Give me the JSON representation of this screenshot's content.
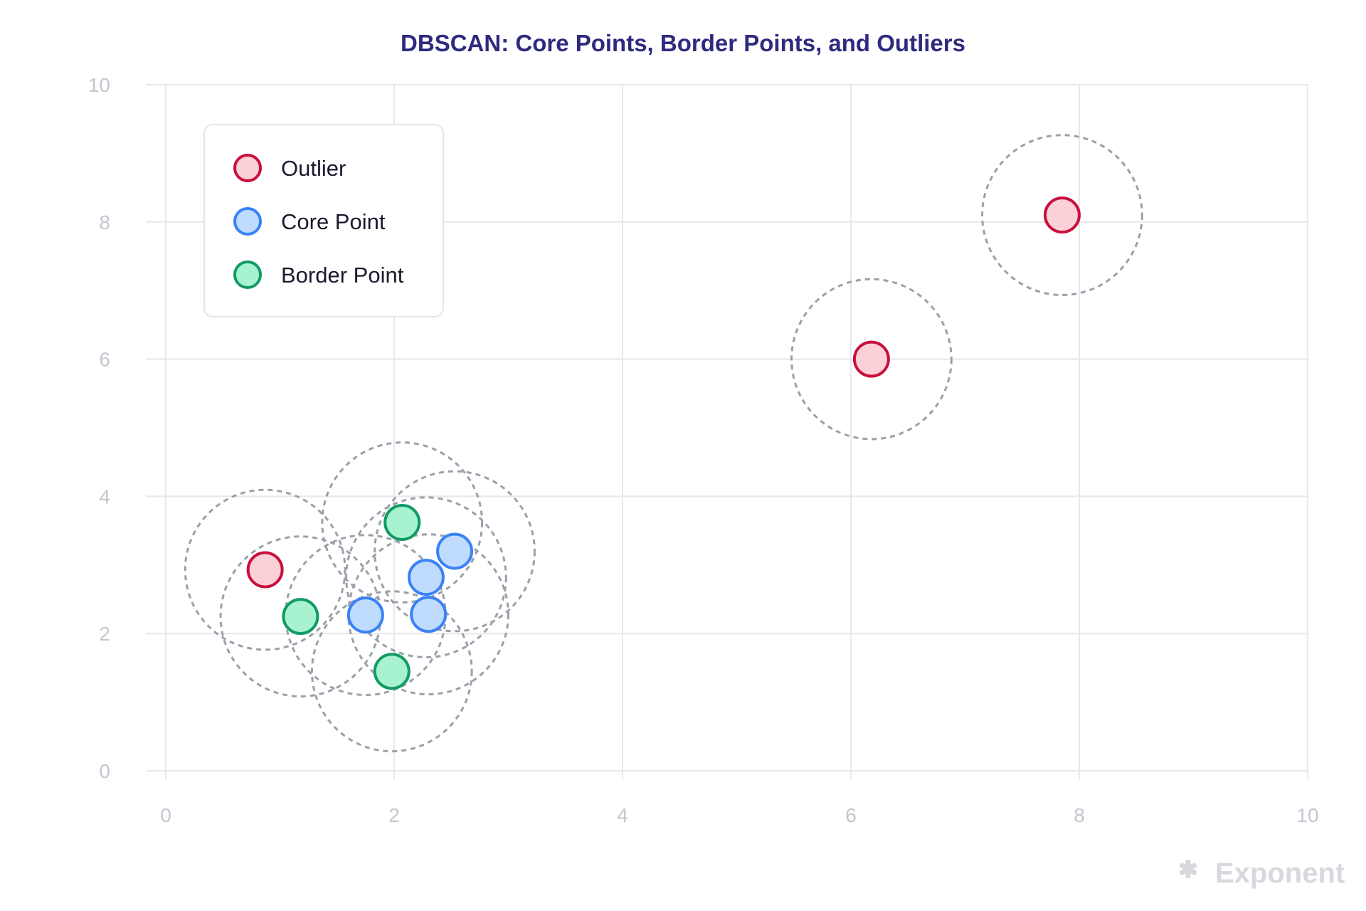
{
  "chart_data": {
    "type": "scatter",
    "title": "DBSCAN: Core Points, Border Points, and Outliers",
    "xlabel": "",
    "ylabel": "",
    "xlim": [
      0,
      10
    ],
    "ylim": [
      0,
      10
    ],
    "x_ticks": [
      "0",
      "2",
      "4",
      "6",
      "8",
      "10"
    ],
    "y_ticks": [
      "0",
      "2",
      "4",
      "6",
      "8",
      "10"
    ],
    "grid": true,
    "legend_position": "top-left",
    "epsilon": 0.7,
    "series": [
      {
        "name": "Outlier",
        "fill": "#fbd0d7",
        "stroke": "#c8103d",
        "points": [
          {
            "x": 0.87,
            "y": 2.93
          },
          {
            "x": 6.18,
            "y": 6.0
          },
          {
            "x": 7.85,
            "y": 8.1
          }
        ]
      },
      {
        "name": "Core Point",
        "fill": "#bfdbfe",
        "stroke": "#3b82f6",
        "points": [
          {
            "x": 1.75,
            "y": 2.27
          },
          {
            "x": 2.28,
            "y": 2.82
          },
          {
            "x": 2.3,
            "y": 2.28
          },
          {
            "x": 2.53,
            "y": 3.2
          }
        ]
      },
      {
        "name": "Border Point",
        "fill": "#a7f3d0",
        "stroke": "#129a66",
        "points": [
          {
            "x": 1.18,
            "y": 2.25
          },
          {
            "x": 2.07,
            "y": 3.62
          },
          {
            "x": 1.98,
            "y": 1.45
          }
        ]
      }
    ]
  },
  "colors": {
    "title": "#2e2a7e",
    "grid": "#e7e8ec",
    "epsilon_circle": "#9aa0aa"
  },
  "branding": {
    "logo_text": "Exponent",
    "logo_icon": "asterisk-icon"
  }
}
